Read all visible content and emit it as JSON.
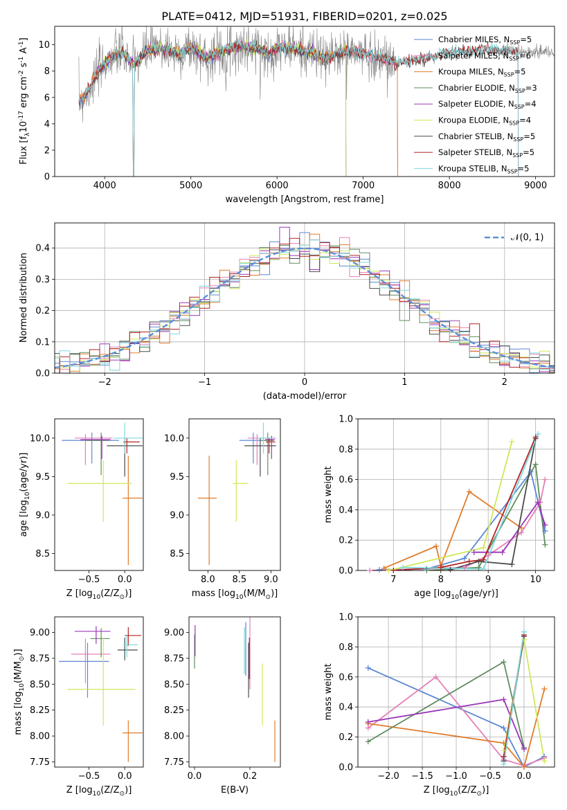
{
  "figure_title": "PLATE=0412, MJD=51931, FIBERID=0201, z=0.025",
  "colors": {
    "Chabrier MILES": "#5b86d4",
    "Salpeter MILES": "#e57fb5",
    "Kroupa MILES": "#e07b2a",
    "Chabrier ELODIE": "#5f8c5f",
    "Salpeter ELODIE": "#9a35b8",
    "Kroupa ELODIE": "#cfe85a",
    "Chabrier STELIB": "#4a4a4a",
    "Salpeter STELIB": "#b22222",
    "Kroupa STELIB": "#7fd8dc",
    "data": "#808080"
  },
  "chart_data": [
    {
      "id": "spectrum",
      "type": "line",
      "xlabel": "wavelength [Angstrom, rest frame]",
      "ylabel": "Flux [f$_\\lambda$10$^{-17}$ erg cm$^{-2}$ s$^{-1}$ A$^{-1}$]",
      "xlim": [
        3420,
        9220
      ],
      "ylim": [
        0,
        11.4
      ],
      "xticks": [
        4000,
        5000,
        6000,
        7000,
        8000,
        9000
      ],
      "yticks": [
        0,
        2,
        4,
        6,
        8,
        10
      ],
      "grid": false,
      "legend": "top-right",
      "legend_entries": [
        {
          "name": "Chabrier MILES",
          "label": "Chabrier MILES, N",
          "n": "5"
        },
        {
          "name": "Salpeter MILES",
          "label": "Salpeter MILES, N",
          "n": "6"
        },
        {
          "name": "Kroupa MILES",
          "label": "Kroupa MILES, N",
          "n": "5"
        },
        {
          "name": "Chabrier ELODIE",
          "label": "Chabrier ELODIE, N",
          "n": "3"
        },
        {
          "name": "Salpeter ELODIE",
          "label": "Salpeter ELODIE, N",
          "n": "4"
        },
        {
          "name": "Kroupa ELODIE",
          "label": "Kroupa ELODIE, N",
          "n": "4"
        },
        {
          "name": "Chabrier STELIB",
          "label": "Chabrier STELIB, N",
          "n": "5"
        },
        {
          "name": "Salpeter STELIB",
          "label": "Salpeter STELIB, N",
          "n": "5"
        },
        {
          "name": "Kroupa STELIB",
          "label": "Kroupa STELIB, N",
          "n": "5"
        }
      ],
      "data_series": {
        "x": [
          3700,
          3800,
          3900,
          4000,
          4100,
          4200,
          4340,
          4500,
          4700,
          4861,
          5000,
          5175,
          5400,
          5600,
          5800,
          5893,
          6000,
          6200,
          6400,
          6563,
          6700,
          6800,
          7000,
          7200,
          7400,
          7600,
          8000,
          8400,
          8800,
          9200
        ],
        "y": [
          5.6,
          6.4,
          7.6,
          8.6,
          9.2,
          9.4,
          8.5,
          9.6,
          9.7,
          9.3,
          9.8,
          9.0,
          9.6,
          9.9,
          9.7,
          9.2,
          9.8,
          9.7,
          9.4,
          8.9,
          9.4,
          9.5,
          9.3,
          9.0,
          8.6,
          8.8,
          9.4,
          9.6,
          9.5,
          9.4
        ]
      },
      "model_series": [
        {
          "name": "Chabrier MILES",
          "x_range": [
            3700,
            7400
          ]
        },
        {
          "name": "Salpeter MILES",
          "x_range": [
            3700,
            7400
          ]
        },
        {
          "name": "Kroupa MILES",
          "x_range": [
            3700,
            7400
          ]
        },
        {
          "name": "Chabrier ELODIE",
          "x_range": [
            3900,
            6800
          ]
        },
        {
          "name": "Salpeter ELODIE",
          "x_range": [
            3900,
            6800
          ]
        },
        {
          "name": "Kroupa ELODIE",
          "x_range": [
            3900,
            6800
          ]
        },
        {
          "name": "Chabrier STELIB",
          "x_range": [
            3700,
            8800
          ]
        },
        {
          "name": "Salpeter STELIB",
          "x_range": [
            3700,
            8800
          ]
        },
        {
          "name": "Kroupa STELIB",
          "x_range": [
            3700,
            8800
          ]
        }
      ]
    },
    {
      "id": "residuals",
      "type": "histogram",
      "xlabel": "(data-model)/error",
      "ylabel": "Normed distribution",
      "xlim": [
        -2.5,
        2.5
      ],
      "ylim": [
        0,
        0.48
      ],
      "xticks": [
        -2,
        -1,
        0,
        1,
        2
      ],
      "yticks": [
        0.0,
        0.1,
        0.2,
        0.3,
        0.4
      ],
      "grid": true,
      "legend": "top-right",
      "legend_label": "𝒩(0, 1)",
      "bin_width": 0.1,
      "series": [
        "Chabrier MILES",
        "Salpeter MILES",
        "Kroupa MILES",
        "Chabrier ELODIE",
        "Salpeter ELODIE",
        "Kroupa ELODIE",
        "Chabrier STELIB",
        "Salpeter STELIB",
        "Kroupa STELIB"
      ]
    },
    {
      "id": "age-vs-Z",
      "type": "scatter",
      "xlabel": "Z [log$_{10}$($Z/Z_\\odot$)]",
      "ylabel": "age  [log$_{10}$($age/yr$)]",
      "xlim": [
        -0.98,
        0.26
      ],
      "ylim": [
        8.28,
        10.25
      ],
      "xticks": [
        -0.5,
        0.0
      ],
      "yticks": [
        8.5,
        9.0,
        9.5,
        10.0
      ],
      "grid": false,
      "points": [
        {
          "series": "Chabrier MILES",
          "x": -0.46,
          "y": 9.97,
          "xerr": [
            0.42,
            0.38
          ],
          "yerr": [
            0.3,
            0.1
          ]
        },
        {
          "series": "Salpeter MILES",
          "x": -0.55,
          "y": 10.0,
          "xerr": [
            0.15,
            0.38
          ],
          "yerr": [
            0.35,
            0.05
          ]
        },
        {
          "series": "Kroupa MILES",
          "x": 0.05,
          "y": 9.22,
          "xerr": [
            0.08,
            0.2
          ],
          "yerr": [
            0.87,
            0.55
          ]
        },
        {
          "series": "Chabrier ELODIE",
          "x": -0.33,
          "y": 9.97,
          "xerr": [
            0.22,
            0.1
          ],
          "yerr": [
            0.45,
            0.1
          ]
        },
        {
          "series": "Salpeter ELODIE",
          "x": -0.32,
          "y": 9.98,
          "xerr": [
            0.3,
            0.12
          ],
          "yerr": [
            0.25,
            0.05
          ]
        },
        {
          "series": "Kroupa ELODIE",
          "x": -0.3,
          "y": 9.41,
          "xerr": [
            0.5,
            0.4
          ],
          "yerr": [
            0.5,
            0.3
          ]
        },
        {
          "series": "Chabrier STELIB",
          "x": 0.0,
          "y": 9.9,
          "xerr": [
            0.25,
            0.25
          ],
          "yerr": [
            0.4,
            0.1
          ]
        },
        {
          "series": "Salpeter STELIB",
          "x": 0.03,
          "y": 9.95,
          "xerr": [
            0.05,
            0.18
          ],
          "yerr": [
            0.15,
            0.05
          ]
        },
        {
          "series": "Kroupa STELIB",
          "x": 0.0,
          "y": 10.0,
          "xerr": [
            0.15,
            0.25
          ],
          "yerr": [
            0.2,
            0.2
          ]
        }
      ]
    },
    {
      "id": "age-vs-mass",
      "type": "scatter",
      "xlabel": "mass [log$_{10}$($M/M_\\odot$)]",
      "ylabel": "",
      "xlim": [
        7.7,
        9.15
      ],
      "ylim": [
        8.28,
        10.25
      ],
      "xticks": [
        8.0,
        8.5,
        9.0
      ],
      "yticks": [
        8.5,
        9.0,
        9.5,
        10.0
      ],
      "grid": false,
      "points": [
        {
          "series": "Chabrier MILES",
          "x": 8.72,
          "y": 9.97,
          "xerr": [
            0.22,
            0.2
          ],
          "yerr": [
            0.3,
            0.1
          ]
        },
        {
          "series": "Salpeter MILES",
          "x": 8.78,
          "y": 10.0,
          "xerr": [
            0.15,
            0.3
          ],
          "yerr": [
            0.35,
            0.05
          ]
        },
        {
          "series": "Kroupa MILES",
          "x": 8.02,
          "y": 9.22,
          "xerr": [
            0.18,
            0.12
          ],
          "yerr": [
            0.87,
            0.55
          ]
        },
        {
          "series": "Chabrier ELODIE",
          "x": 8.95,
          "y": 9.97,
          "xerr": [
            0.1,
            0.1
          ],
          "yerr": [
            0.45,
            0.1
          ]
        },
        {
          "series": "Salpeter ELODIE",
          "x": 9.01,
          "y": 9.98,
          "xerr": [
            0.1,
            0.05
          ],
          "yerr": [
            0.25,
            0.05
          ]
        },
        {
          "series": "Kroupa ELODIE",
          "x": 8.45,
          "y": 9.41,
          "xerr": [
            0.05,
            0.18
          ],
          "yerr": [
            0.5,
            0.3
          ]
        },
        {
          "series": "Chabrier STELIB",
          "x": 8.83,
          "y": 9.9,
          "xerr": [
            0.25,
            0.25
          ],
          "yerr": [
            0.4,
            0.1
          ]
        },
        {
          "series": "Salpeter STELIB",
          "x": 8.97,
          "y": 9.95,
          "xerr": [
            0.05,
            0.1
          ],
          "yerr": [
            0.15,
            0.05
          ]
        },
        {
          "series": "Kroupa STELIB",
          "x": 8.88,
          "y": 10.0,
          "xerr": [
            0.1,
            0.15
          ],
          "yerr": [
            0.2,
            0.2
          ]
        }
      ]
    },
    {
      "id": "weight-vs-age",
      "type": "line",
      "xlabel": "age  [log$_{10}$($age/yr$)]",
      "ylabel": "mass weight",
      "xlim": [
        6.25,
        10.4
      ],
      "ylim": [
        0,
        1.0
      ],
      "xticks": [
        7,
        8,
        9,
        10
      ],
      "yticks": [
        0.0,
        0.2,
        0.4,
        0.6,
        0.8,
        1.0
      ],
      "grid": true,
      "series": [
        {
          "name": "Chabrier MILES",
          "x": [
            6.7,
            7.7,
            8.5,
            9.9,
            10.2
          ],
          "y": [
            0.005,
            0.01,
            0.08,
            0.65,
            0.26
          ]
        },
        {
          "name": "Salpeter MILES",
          "x": [
            6.5,
            8.5,
            9.0,
            9.7,
            10.1,
            10.2
          ],
          "y": [
            0.0,
            0.02,
            0.1,
            0.25,
            0.45,
            0.6
          ]
        },
        {
          "name": "Kroupa MILES",
          "x": [
            6.8,
            7.9,
            8.0,
            8.6,
            9.7
          ],
          "y": [
            0.015,
            0.16,
            0.03,
            0.52,
            0.28
          ]
        },
        {
          "name": "Chabrier ELODIE",
          "x": [
            7.7,
            8.8,
            10.0,
            10.2
          ],
          "y": [
            0.0,
            0.02,
            0.7,
            0.17
          ]
        },
        {
          "name": "Salpeter ELODIE",
          "x": [
            8.7,
            9.3,
            10.05,
            10.2
          ],
          "y": [
            0.12,
            0.12,
            0.45,
            0.3
          ]
        },
        {
          "name": "Kroupa ELODIE",
          "x": [
            6.9,
            8.9,
            9.5
          ],
          "y": [
            0.0,
            0.15,
            0.85
          ]
        },
        {
          "name": "Chabrier STELIB",
          "x": [
            8.2,
            8.8,
            9.5,
            10.0
          ],
          "y": [
            0.005,
            0.06,
            0.04,
            0.87
          ]
        },
        {
          "name": "Salpeter STELIB",
          "x": [
            7.0,
            8.0,
            8.6,
            8.9,
            10.0
          ],
          "y": [
            0.0,
            0.02,
            0.06,
            0.07,
            0.88
          ]
        },
        {
          "name": "Kroupa STELIB",
          "x": [
            7.2,
            8.9,
            10.05
          ],
          "y": [
            0.02,
            0.01,
            0.9
          ]
        }
      ]
    },
    {
      "id": "mass-vs-Z",
      "type": "scatter",
      "xlabel": "Z [log$_{10}$($Z/Z_\\odot$)]",
      "ylabel": "mass [log$_{10}$($M/M_\\odot$)]",
      "xlim": [
        -0.98,
        0.26
      ],
      "ylim": [
        7.7,
        9.15
      ],
      "xticks": [
        -0.5,
        0.0
      ],
      "yticks": [
        7.75,
        8.0,
        8.25,
        8.5,
        8.75,
        9.0
      ],
      "grid": false,
      "points": [
        {
          "series": "Chabrier MILES",
          "x": -0.52,
          "y": 8.72,
          "xerr": [
            0.4,
            0.3
          ],
          "yerr": [
            0.35,
            0.18
          ]
        },
        {
          "series": "Salpeter MILES",
          "x": -0.55,
          "y": 8.79,
          "xerr": [
            0.2,
            0.35
          ],
          "yerr": [
            0.28,
            0.15
          ]
        },
        {
          "series": "Kroupa MILES",
          "x": 0.05,
          "y": 8.03,
          "xerr": [
            0.08,
            0.2
          ],
          "yerr": [
            0.28,
            0.12
          ]
        },
        {
          "series": "Chabrier ELODIE",
          "x": -0.33,
          "y": 8.94,
          "xerr": [
            0.15,
            0.12
          ],
          "yerr": [
            0.18,
            0.1
          ]
        },
        {
          "series": "Salpeter ELODIE",
          "x": -0.4,
          "y": 9.01,
          "xerr": [
            0.3,
            0.2
          ],
          "yerr": [
            0.12,
            0.05
          ]
        },
        {
          "series": "Kroupa ELODIE",
          "x": -0.3,
          "y": 8.45,
          "xerr": [
            0.5,
            0.45
          ],
          "yerr": [
            0.35,
            0.5
          ]
        },
        {
          "series": "Chabrier STELIB",
          "x": 0.0,
          "y": 8.83,
          "xerr": [
            0.1,
            0.18
          ],
          "yerr": [
            0.1,
            0.12
          ]
        },
        {
          "series": "Salpeter STELIB",
          "x": 0.05,
          "y": 8.97,
          "xerr": [
            0.05,
            0.18
          ],
          "yerr": [
            0.1,
            0.08
          ]
        },
        {
          "series": "Kroupa STELIB",
          "x": 0.03,
          "y": 8.88,
          "xerr": [
            0.05,
            0.15
          ],
          "yerr": [
            0.12,
            0.1
          ]
        }
      ]
    },
    {
      "id": "mass-vs-ebv",
      "type": "scatter",
      "xlabel": "E(B-V)",
      "ylabel": "",
      "xlim": [
        -0.02,
        0.31
      ],
      "ylim": [
        7.7,
        9.15
      ],
      "xticks": [
        0.0,
        0.2
      ],
      "yticks": [
        7.75,
        8.0,
        8.25,
        8.5,
        8.75,
        9.0
      ],
      "grid": false,
      "points": [
        {
          "series": "Chabrier MILES",
          "x": 0.185,
          "y": 8.8,
          "yerr": [
            0.22,
            0.3
          ]
        },
        {
          "series": "Salpeter MILES",
          "x": 0.2,
          "y": 8.75,
          "yerr": [
            0.3,
            0.4
          ]
        },
        {
          "series": "Kroupa MILES",
          "x": 0.29,
          "y": 7.95,
          "yerr": [
            0.2,
            0.2
          ]
        },
        {
          "series": "Chabrier ELODIE",
          "x": 0.0,
          "y": 8.9,
          "yerr": [
            0.25,
            0.08
          ]
        },
        {
          "series": "Salpeter ELODIE",
          "x": 0.002,
          "y": 8.92,
          "yerr": [
            0.15,
            0.15
          ]
        },
        {
          "series": "Kroupa ELODIE",
          "x": 0.245,
          "y": 8.4,
          "yerr": [
            0.3,
            0.3
          ]
        },
        {
          "series": "Chabrier STELIB",
          "x": 0.195,
          "y": 8.65,
          "yerr": [
            0.28,
            0.25
          ]
        },
        {
          "series": "Salpeter STELIB",
          "x": 0.198,
          "y": 8.75,
          "yerr": [
            0.2,
            0.2
          ]
        },
        {
          "series": "Kroupa STELIB",
          "x": 0.18,
          "y": 8.85,
          "yerr": [
            0.25,
            0.2
          ]
        }
      ]
    },
    {
      "id": "weight-vs-Z",
      "type": "line",
      "xlabel": "Z [log$_{10}$($Z/Z_\\odot$)]",
      "ylabel": "mass weight",
      "xlim": [
        -2.45,
        0.45
      ],
      "ylim": [
        0,
        1.0
      ],
      "xticks": [
        -2.0,
        -1.5,
        -1.0,
        -0.5,
        0.0
      ],
      "yticks": [
        0.0,
        0.2,
        0.4,
        0.6,
        0.8,
        1.0
      ],
      "grid": true,
      "series": [
        {
          "name": "Chabrier MILES",
          "x": [
            -2.3,
            -0.3,
            0.0,
            0.3
          ],
          "y": [
            0.66,
            0.26,
            0.0,
            0.07
          ]
        },
        {
          "name": "Salpeter MILES",
          "x": [
            -2.3,
            -1.3,
            -0.3,
            0.0,
            0.3
          ],
          "y": [
            0.26,
            0.6,
            0.05,
            0.01,
            0.06
          ]
        },
        {
          "name": "Kroupa MILES",
          "x": [
            -2.3,
            -0.3,
            0.0,
            0.3
          ],
          "y": [
            0.29,
            0.16,
            0.0,
            0.52
          ]
        },
        {
          "name": "Chabrier ELODIE",
          "x": [
            -2.3,
            -0.3,
            0.0
          ],
          "y": [
            0.17,
            0.7,
            0.13
          ]
        },
        {
          "name": "Salpeter ELODIE",
          "x": [
            -2.3,
            -0.3,
            0.0
          ],
          "y": [
            0.3,
            0.45,
            0.12
          ]
        },
        {
          "name": "Kroupa ELODIE",
          "x": [
            -0.3,
            0.0,
            0.3
          ],
          "y": [
            0.11,
            0.85,
            0.04
          ]
        },
        {
          "name": "Chabrier STELIB",
          "x": [
            -0.3,
            0.0
          ],
          "y": [
            0.04,
            0.87
          ]
        },
        {
          "name": "Salpeter STELIB",
          "x": [
            -0.3,
            0.0
          ],
          "y": [
            0.07,
            0.88
          ]
        },
        {
          "name": "Kroupa STELIB",
          "x": [
            -0.3,
            0.0
          ],
          "y": [
            0.02,
            0.9
          ]
        }
      ]
    }
  ]
}
